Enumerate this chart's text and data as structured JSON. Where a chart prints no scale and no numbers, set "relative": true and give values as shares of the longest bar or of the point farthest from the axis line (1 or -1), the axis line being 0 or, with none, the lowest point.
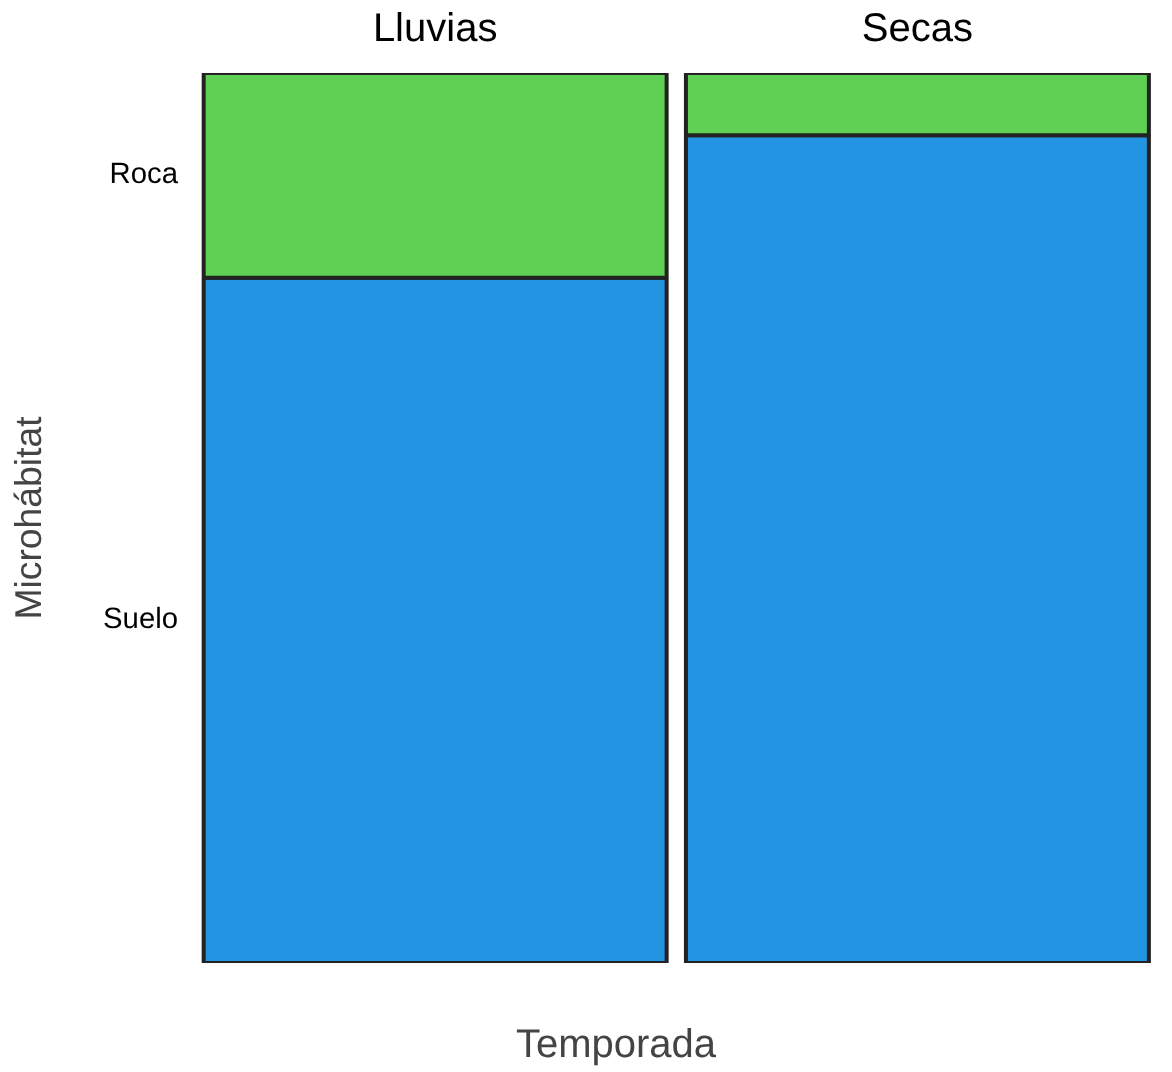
{
  "chart_data": {
    "type": "bar",
    "stacked": true,
    "relative": true,
    "categories": [
      "Lluvias",
      "Secas"
    ],
    "xlabel": "Temporada",
    "ylabel": "Microhábitat",
    "legend": false,
    "grid": false,
    "series": [
      {
        "name": "Suelo",
        "color": "#2394e1",
        "values": [
          0.77,
          0.93
        ]
      },
      {
        "name": "Roca",
        "color": "#5fd053",
        "values": [
          0.23,
          0.07
        ]
      }
    ]
  }
}
